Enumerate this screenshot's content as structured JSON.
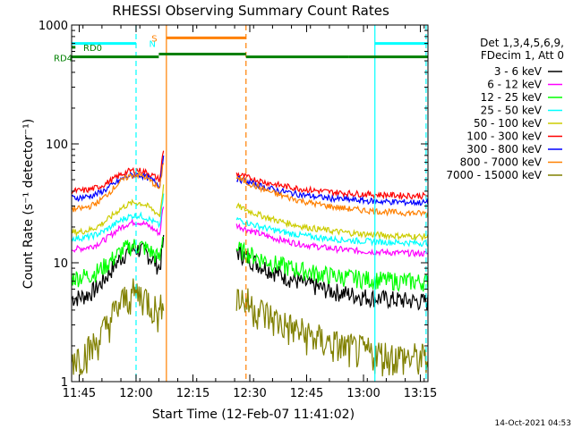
{
  "chart_data": {
    "type": "line",
    "title": "RHESSI Observing Summary Count Rates",
    "xlabel": "Start Time (12-Feb-07 11:41:02)",
    "ylabel": "Count Rate (s⁻¹ detector⁻¹)",
    "yscale": "log",
    "ylim": [
      1,
      1000
    ],
    "xlim_minutes": [
      2.0,
      96.0
    ],
    "x_tick_labels": [
      "11:45",
      "12:00",
      "12:15",
      "12:30",
      "12:45",
      "13:00",
      "13:15"
    ],
    "x_tick_minutes": [
      4,
      19,
      34,
      49,
      64,
      79,
      94
    ],
    "y_tick_labels": [
      "1",
      "10",
      "100",
      "1000"
    ],
    "y_tick_values": [
      1,
      10,
      100,
      1000
    ],
    "legend_header": [
      "Det 1,3,4,5,6,9,",
      "FDecim 1, Att 0"
    ],
    "legend_placement": "right",
    "series": [
      {
        "name": "3 - 6 keV",
        "color": "#000000",
        "base": 5.0,
        "peak": 13.0
      },
      {
        "name": "6 - 12 keV",
        "color": "#ff00ff",
        "base": 13.0,
        "peak": 22.0
      },
      {
        "name": "12 - 25 keV",
        "color": "#00ff00",
        "base": 7.5,
        "peak": 14.0
      },
      {
        "name": "25 - 50 keV",
        "color": "#00ffff",
        "base": 16.0,
        "peak": 25.0
      },
      {
        "name": "50 - 100 keV",
        "color": "#cccc00",
        "base": 18.0,
        "peak": 32.0
      },
      {
        "name": "100 - 300 keV",
        "color": "#ff0000",
        "base": 40.0,
        "peak": 60.0
      },
      {
        "name": "300 - 800 keV",
        "color": "#0000ff",
        "base": 35.0,
        "peak": 55.0
      },
      {
        "name": "800 - 7000 keV",
        "color": "#ff8000",
        "base": 28.0,
        "peak": 55.0
      },
      {
        "name": "7000 - 15000 keV",
        "color": "#808000",
        "base": 1.6,
        "peak": 5.5
      }
    ],
    "segments_minutes": [
      [
        2.0,
        26.3
      ],
      [
        45.5,
        96.0
      ]
    ],
    "flag_bars": [
      {
        "label": "RD0",
        "color": "#008000",
        "y": 650,
        "ranges": [
          [
            2.0,
            3.0
          ]
        ]
      },
      {
        "label": "RD4",
        "color": "#008000",
        "y": 540,
        "ranges": [
          [
            2.0,
            25.0
          ],
          [
            25.0,
            48.0
          ],
          [
            48.0,
            75.0
          ],
          [
            75.0,
            96.0
          ]
        ]
      },
      {
        "label": "N",
        "color": "#00ffff",
        "y": 700,
        "ranges": [
          [
            2.0,
            19.0
          ],
          [
            82.0,
            96.0
          ]
        ]
      },
      {
        "label": "S",
        "color": "#ff8000",
        "y": 780,
        "ranges": [
          [
            27.0,
            48.0
          ]
        ]
      }
    ],
    "vlines_minutes": [
      {
        "x": 19.0,
        "color": "#00ffff",
        "dash": true
      },
      {
        "x": 27.0,
        "color": "#ff8000",
        "dash": false
      },
      {
        "x": 48.0,
        "color": "#ff8000",
        "dash": true
      },
      {
        "x": 82.0,
        "color": "#00ffff",
        "dash": false
      },
      {
        "x": 95.5,
        "color": "#00ffff",
        "dash": true
      }
    ],
    "footer_date": "14-Oct-2021 04:53"
  }
}
